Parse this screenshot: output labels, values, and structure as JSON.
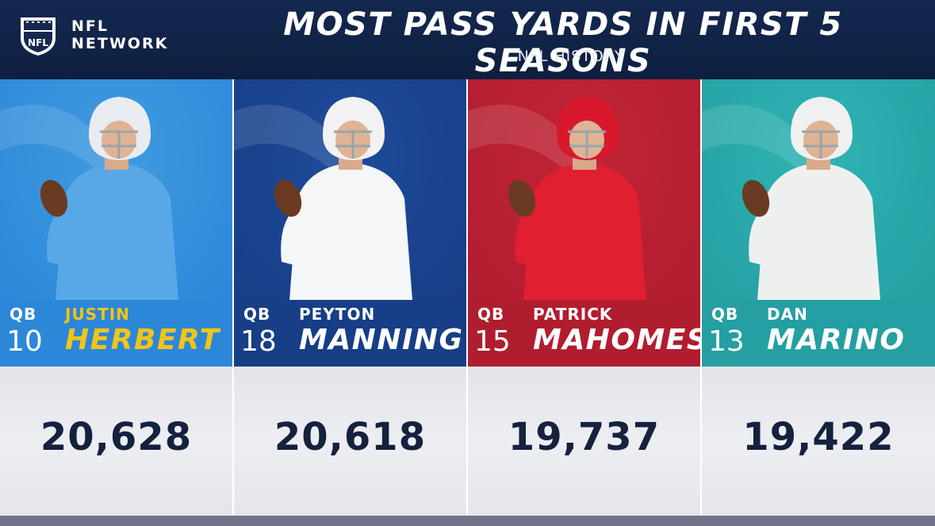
{
  "header": {
    "logo_line1": "NFL",
    "logo_line2": "NETWORK",
    "title": "MOST PASS YARDS IN FIRST 5 SEASONS",
    "subtitle": "NFL HISTORY"
  },
  "colors": {
    "header_bg": "#14284f",
    "stat_text": "#15213d",
    "stat_bg": "#e6e8ed"
  },
  "players": [
    {
      "position": "QB",
      "number": "10",
      "first": "JUSTIN",
      "last": "HERBERT",
      "yards": "20,628",
      "team_color": "#3f9be0",
      "plate_color": "#2d87d9",
      "name_color": "#f2c418",
      "helmet": "#e8ecf0",
      "jersey": "#58a8e8"
    },
    {
      "position": "QB",
      "number": "18",
      "first": "PEYTON",
      "last": "MANNING",
      "yards": "20,618",
      "team_color": "#1e4b9a",
      "plate_color": "#173e86",
      "name_color": "#ffffff",
      "helmet": "#f2f2f2",
      "jersey": "#f5f6f8"
    },
    {
      "position": "QB",
      "number": "15",
      "first": "PATRICK",
      "last": "MAHOMES",
      "yards": "19,737",
      "team_color": "#c22437",
      "plate_color": "#b01d2f",
      "name_color": "#ffffff",
      "helmet": "#d8182b",
      "jersey": "#e01f30"
    },
    {
      "position": "QB",
      "number": "13",
      "first": "DAN",
      "last": "MARINO",
      "yards": "19,422",
      "team_color": "#2fb4b4",
      "plate_color": "#259fa1",
      "name_color": "#ffffff",
      "helmet": "#f0f0f0",
      "jersey": "#eef0f0"
    }
  ]
}
